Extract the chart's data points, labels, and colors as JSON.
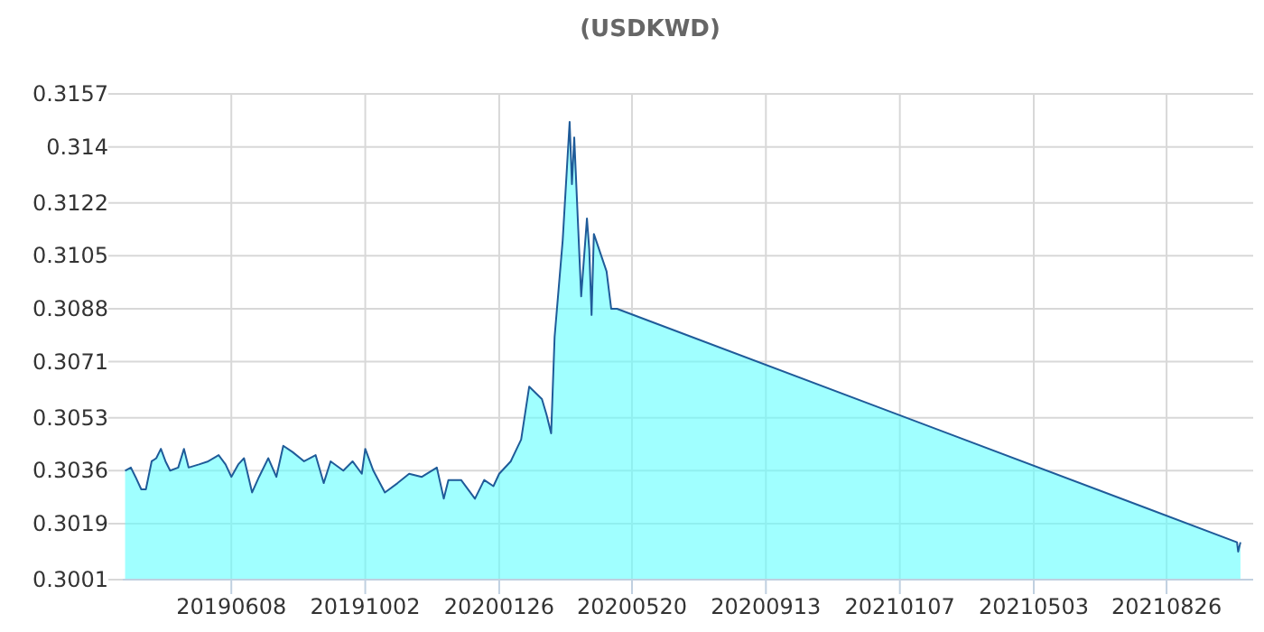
{
  "chart_data": {
    "type": "area",
    "title": "(USDKWD)",
    "x": [
      "2019-03-08",
      "2019-03-13",
      "2019-03-17",
      "2019-03-22",
      "2019-03-26",
      "2019-03-31",
      "2019-04-04",
      "2019-04-08",
      "2019-04-12",
      "2019-04-16",
      "2019-04-23",
      "2019-04-28",
      "2019-05-02",
      "2019-05-11",
      "2019-05-19",
      "2019-05-28",
      "2019-06-03",
      "2019-06-08",
      "2019-06-14",
      "2019-06-19",
      "2019-06-26",
      "2019-07-02",
      "2019-07-10",
      "2019-07-17",
      "2019-07-23",
      "2019-07-31",
      "2019-08-10",
      "2019-08-20",
      "2019-08-27",
      "2019-09-02",
      "2019-09-13",
      "2019-09-21",
      "2019-09-29",
      "2019-10-02",
      "2019-10-09",
      "2019-10-19",
      "2019-10-30",
      "2019-11-09",
      "2019-11-20",
      "2019-12-03",
      "2019-12-09",
      "2019-12-13",
      "2019-12-24",
      "2020-01-05",
      "2020-01-13",
      "2020-01-21",
      "2020-01-26",
      "2020-02-05",
      "2020-02-14",
      "2020-02-21",
      "2020-03-03",
      "2020-03-07",
      "2020-03-11",
      "2020-03-14",
      "2020-03-21",
      "2020-03-27",
      "2020-03-29",
      "2020-03-31",
      "2020-04-06",
      "2020-04-11",
      "2020-04-13",
      "2020-04-15",
      "2020-04-17",
      "2020-04-28",
      "2020-05-02",
      "2020-05-07",
      "2021-10-26",
      "2021-10-27",
      "2021-10-29"
    ],
    "series": [
      {
        "color": "#1f5b99",
        "values": [
          0.3036,
          0.3037,
          0.3034,
          0.303,
          0.303,
          0.3039,
          0.304,
          0.3043,
          0.3039,
          0.3036,
          0.3037,
          0.3043,
          0.3037,
          0.3038,
          0.3039,
          0.3041,
          0.3038,
          0.3034,
          0.3038,
          0.304,
          0.3029,
          0.3034,
          0.304,
          0.3034,
          0.3044,
          0.3042,
          0.3039,
          0.3041,
          0.3032,
          0.3039,
          0.3036,
          0.3039,
          0.3035,
          0.3043,
          0.3036,
          0.3029,
          0.3032,
          0.3035,
          0.3034,
          0.3037,
          0.3027,
          0.3033,
          0.3033,
          0.3027,
          0.3033,
          0.3031,
          0.3035,
          0.3039,
          0.3046,
          0.3063,
          0.3059,
          0.3054,
          0.3048,
          0.3079,
          0.311,
          0.3148,
          0.3128,
          0.3143,
          0.3092,
          0.3117,
          0.3107,
          0.3086,
          0.3112,
          0.31,
          0.3088,
          0.3088,
          0.3013,
          0.301,
          0.3013
        ]
      }
    ],
    "xlim": [
      "2019-03-06",
      "2021-11-09"
    ],
    "xticks": [
      {
        "value": "2019-06-08",
        "label": "20190608"
      },
      {
        "value": "2019-10-02",
        "label": "20191002"
      },
      {
        "value": "2020-01-26",
        "label": "20200126"
      },
      {
        "value": "2020-05-20",
        "label": "20200520"
      },
      {
        "value": "2020-09-13",
        "label": "20200913"
      },
      {
        "value": "2021-01-07",
        "label": "20210107"
      },
      {
        "value": "2021-05-03",
        "label": "20210503"
      },
      {
        "value": "2021-08-26",
        "label": "20210826"
      }
    ],
    "ylim": [
      0.3001,
      0.3157
    ],
    "yticks": [
      0.3001,
      0.3019,
      0.3036,
      0.3053,
      0.3071,
      0.3088,
      0.3105,
      0.3122,
      0.314,
      0.3157
    ],
    "grid": true
  }
}
